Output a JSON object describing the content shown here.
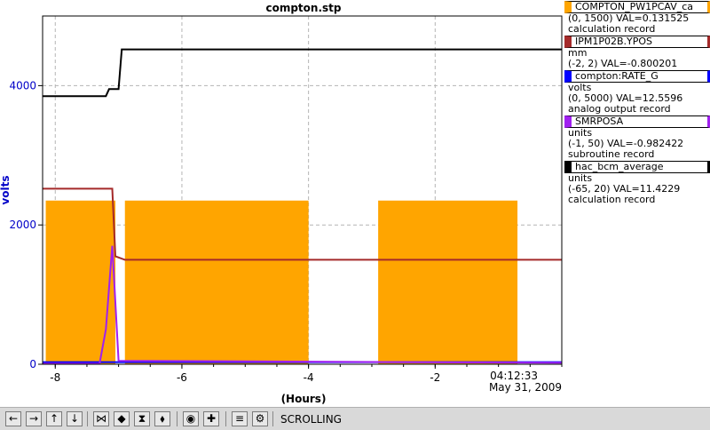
{
  "chart_data": {
    "type": "line",
    "title": "compton.stp",
    "xlabel": "(Hours)",
    "ylabel": "volts",
    "xlim": [
      -8.2,
      0
    ],
    "ylim": [
      0,
      5000
    ],
    "x_ticks": [
      -8,
      -6,
      -4,
      -2
    ],
    "y_ticks": [
      0,
      2000,
      4000
    ],
    "timestamp": "04:12:33",
    "date": "May 31, 2009",
    "grid": "dashed",
    "series": [
      {
        "name": "COMPTON_PW1PCAV_ca",
        "color": "#ffa500",
        "segments": [
          [
            -8.15,
            -7.05,
            "dense"
          ],
          [
            -6.9,
            -4.0,
            "dense"
          ],
          [
            -2.9,
            -0.7,
            "dense"
          ]
        ],
        "high": 2350,
        "low": 0
      },
      {
        "name": "IPM1P02B.YPOS",
        "color": "#a52a2a",
        "points": [
          [
            -8.2,
            2520
          ],
          [
            -7.1,
            2520
          ],
          [
            -7.05,
            1550
          ],
          [
            -6.9,
            1500
          ],
          [
            0,
            1500
          ]
        ]
      },
      {
        "name": "compton:RATE_G",
        "color": "#0000ff",
        "points": [
          [
            -8.2,
            30
          ],
          [
            0,
            30
          ]
        ]
      },
      {
        "name": "SMRPOSA",
        "color": "#a020f0",
        "points": [
          [
            -8.2,
            10
          ],
          [
            -7.3,
            10
          ],
          [
            -7.2,
            500
          ],
          [
            -7.1,
            1700
          ],
          [
            -7.0,
            50
          ],
          [
            0,
            20
          ]
        ]
      },
      {
        "name": "hac_bcm_average",
        "color": "#000000",
        "points": [
          [
            -8.2,
            3850
          ],
          [
            -7.2,
            3850
          ],
          [
            -7.15,
            3950
          ],
          [
            -7.0,
            3950
          ],
          [
            -6.95,
            4520
          ],
          [
            0,
            4520
          ]
        ]
      }
    ]
  },
  "legend": [
    {
      "name": "COMPTON_PW1PCAV_ca",
      "color": "#ffa500",
      "unit": "",
      "range": "(0, 1500) VAL=0.131525",
      "record": "calculation record"
    },
    {
      "name": "IPM1P02B.YPOS",
      "color": "#a52a2a",
      "unit": "mm",
      "range": "(-2, 2) VAL=-0.800201",
      "record": ""
    },
    {
      "name": "compton:RATE_G",
      "color": "#0000ff",
      "unit": "volts",
      "range": "(0, 5000) VAL=12.5596",
      "record": "analog output record"
    },
    {
      "name": "SMRPOSA",
      "color": "#a020f0",
      "unit": "units",
      "range": "(-1, 50) VAL=-0.982422",
      "record": "subroutine record"
    },
    {
      "name": "hac_bcm_average",
      "color": "#000000",
      "unit": "units",
      "range": "(-65, 20) VAL=11.4229",
      "record": "calculation record"
    }
  ],
  "toolbar": {
    "status": "SCROLLING",
    "buttons": [
      {
        "name": "scroll-left-icon",
        "glyph": "←"
      },
      {
        "name": "scroll-right-icon",
        "glyph": "→"
      },
      {
        "name": "scroll-up-icon",
        "glyph": "↑"
      },
      {
        "name": "scroll-down-icon",
        "glyph": "↓"
      },
      {
        "name": "zoom-in-x-icon",
        "glyph": "⋈"
      },
      {
        "name": "zoom-out-x-icon",
        "glyph": "◆"
      },
      {
        "name": "zoom-in-y-icon",
        "glyph": "⧗"
      },
      {
        "name": "zoom-out-y-icon",
        "glyph": "⬧"
      },
      {
        "name": "autoscale-icon",
        "glyph": "◉"
      },
      {
        "name": "crosshair-icon",
        "glyph": "✚"
      },
      {
        "name": "toggle-scrolling-icon",
        "glyph": "≡"
      },
      {
        "name": "config-icon",
        "glyph": "⚙"
      }
    ]
  }
}
